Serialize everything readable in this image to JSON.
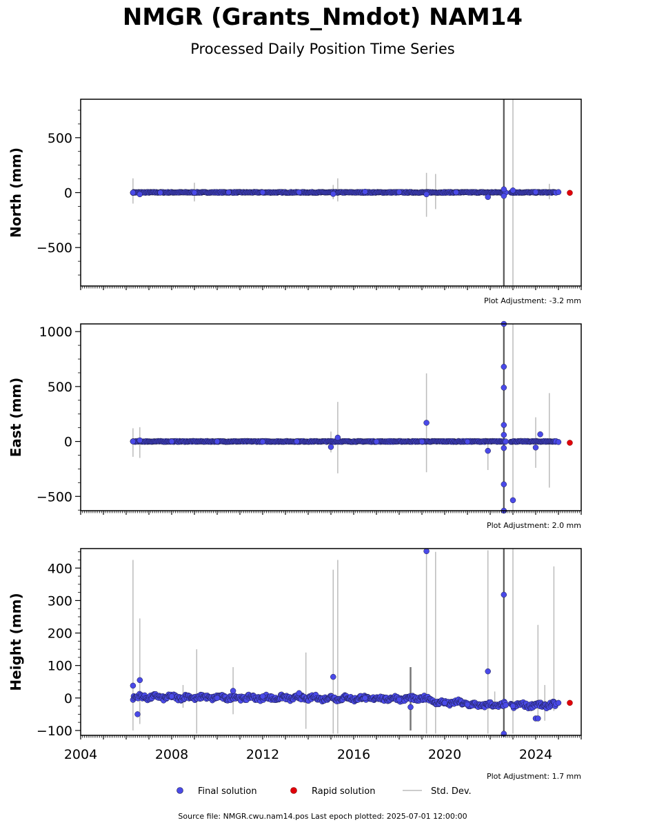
{
  "title": "NMGR (Grants_Nmdot) NAM14",
  "subtitle": "Processed Daily Position Time Series",
  "source_note": "Source file: NMGR.cwu.nam14.pos  Last epoch plotted: 2025-07-01 12:00:00",
  "legend": {
    "final_label": "Final solution",
    "rapid_label": "Rapid solution",
    "std_label": "Std. Dev."
  },
  "colors": {
    "final": "#4a4ae8",
    "final_edge": "#1a1a40",
    "rapid": "#e0000a",
    "std": "#bbbbbb"
  },
  "chart_data": [
    {
      "type": "scatter",
      "ylabel": "North (mm)",
      "adjustment": "Plot Adjustment: -3.2 mm",
      "xlim": [
        2004,
        2026
      ],
      "ylim": [
        -850,
        850
      ],
      "yticks": [
        -500,
        0,
        500
      ],
      "ytick_labels": [
        "−500",
        "0",
        "500"
      ],
      "series": [
        {
          "name": "Final solution",
          "kind": "final",
          "x": [
            2006.3,
            2006.6,
            2007.5,
            2009.0,
            2010.5,
            2012.0,
            2013.6,
            2015.1,
            2016.5,
            2018.0,
            2019.2,
            2020.5,
            2021.9,
            2022.6,
            2022.6,
            2023.0,
            2024.0,
            2025.0
          ],
          "y": [
            0,
            -15,
            0,
            0,
            3,
            2,
            3,
            -12,
            8,
            5,
            -15,
            3,
            -40,
            -30,
            30,
            20,
            5,
            5
          ]
        },
        {
          "name": "Rapid solution",
          "kind": "rapid",
          "x": [
            2025.5
          ],
          "y": [
            -2
          ]
        }
      ]
    },
    {
      "type": "scatter",
      "ylabel": "East (mm)",
      "adjustment": "Plot Adjustment: 2.0 mm",
      "xlim": [
        2004,
        2026
      ],
      "ylim": [
        -630,
        1070
      ],
      "yticks": [
        -500,
        0,
        500,
        1000
      ],
      "ytick_labels": [
        "−500",
        "0",
        "500",
        "1000"
      ],
      "series": [
        {
          "name": "Final solution",
          "kind": "final",
          "x": [
            2006.3,
            2006.6,
            2008.0,
            2010.0,
            2012.0,
            2013.5,
            2015.0,
            2015.3,
            2017.0,
            2019.0,
            2019.2,
            2021.0,
            2021.9,
            2022.6,
            2022.6,
            2022.6,
            2022.6,
            2022.6,
            2022.6,
            2022.6,
            2022.6,
            2023.0,
            2024.0,
            2024.2,
            2025.0
          ],
          "y": [
            0,
            10,
            0,
            0,
            -2,
            0,
            -50,
            35,
            -2,
            -2,
            170,
            -2,
            -85,
            1070,
            680,
            490,
            150,
            60,
            -60,
            -390,
            -630,
            -535,
            -55,
            65,
            -5
          ]
        },
        {
          "name": "Rapid solution",
          "kind": "rapid",
          "x": [
            2025.5
          ],
          "y": [
            -12
          ]
        }
      ]
    },
    {
      "type": "scatter",
      "ylabel": "Height (mm)",
      "adjustment": "Plot Adjustment: 1.7 mm",
      "xlim": [
        2004,
        2026
      ],
      "ylim": [
        -115,
        460
      ],
      "xticks": [
        2004,
        2008,
        2012,
        2016,
        2020,
        2024
      ],
      "xtick_labels": [
        "2004",
        "2008",
        "2012",
        "2016",
        "2020",
        "2024"
      ],
      "yticks": [
        -100,
        0,
        100,
        200,
        300,
        400
      ],
      "ytick_labels": [
        "−100",
        "0",
        "100",
        "200",
        "300",
        "400"
      ],
      "series": [
        {
          "name": "Final solution",
          "kind": "final",
          "x": [
            2006.3,
            2006.5,
            2006.6,
            2008.0,
            2010.0,
            2010.7,
            2012.0,
            2013.6,
            2015.1,
            2016.5,
            2018.0,
            2018.5,
            2019.2,
            2020.0,
            2021.0,
            2021.9,
            2022.6,
            2022.6,
            2023.0,
            2024.0,
            2024.1,
            2025.0
          ],
          "y": [
            38,
            -50,
            55,
            5,
            0,
            22,
            5,
            15,
            65,
            0,
            -5,
            -28,
            452,
            -15,
            -20,
            82,
            318,
            -110,
            -25,
            -63,
            -63,
            -15
          ]
        },
        {
          "name": "Rapid solution",
          "kind": "rapid",
          "x": [
            2025.5
          ],
          "y": [
            -15
          ]
        }
      ]
    }
  ]
}
